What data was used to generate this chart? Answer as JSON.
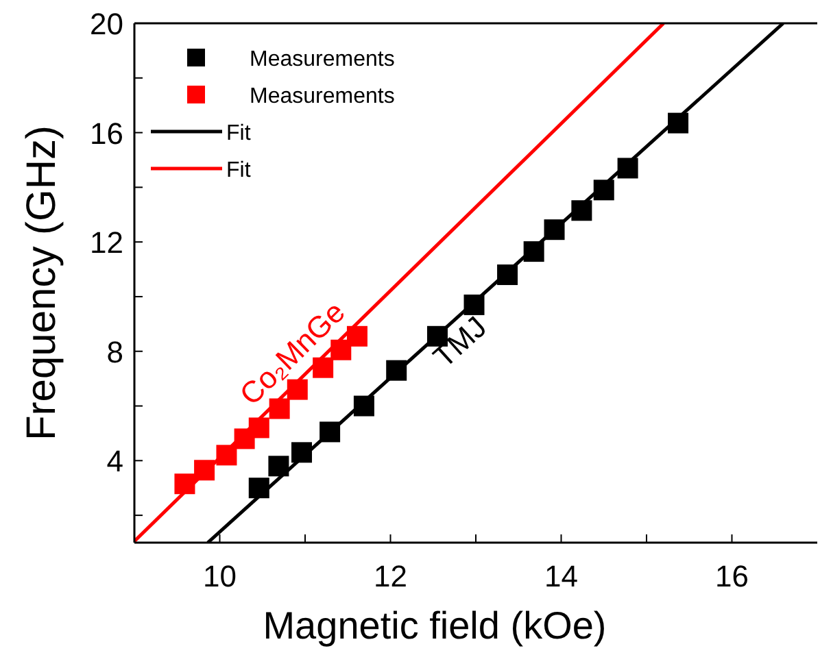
{
  "chart_data": {
    "type": "scatter",
    "xlabel": "Magnetic field (kOe)",
    "ylabel": "Frequency (GHz)",
    "xlim": [
      9,
      17
    ],
    "xticks": [
      10,
      {
        "value": 11,
        "label": null
      },
      12,
      {
        "value": 13,
        "label": null
      },
      14,
      {
        "value": 15,
        "label": null
      },
      16
    ],
    "ylim": [
      1,
      20
    ],
    "yticks": [
      {
        "value": 2,
        "label": null
      },
      4,
      {
        "value": 6,
        "label": null
      },
      8,
      {
        "value": 10,
        "label": null
      },
      12,
      {
        "value": 14,
        "label": null
      },
      16,
      {
        "value": 18,
        "label": null
      },
      20
    ],
    "legend": "top left",
    "grid": false,
    "series": [
      {
        "name": "Measurements",
        "color": "#000000",
        "marker": "square",
        "x": [
          10.46,
          10.69,
          10.96,
          11.29,
          11.69,
          12.07,
          12.55,
          12.98,
          13.37,
          13.68,
          13.92,
          14.24,
          14.5,
          14.78,
          15.37
        ],
        "values": [
          3.0,
          3.8,
          4.3,
          5.05,
          6.0,
          7.3,
          8.55,
          9.7,
          10.8,
          11.65,
          12.45,
          13.15,
          13.9,
          14.7,
          16.35
        ]
      },
      {
        "name": "Measurements",
        "color": "#ff0000",
        "marker": "square",
        "x": [
          9.59,
          9.82,
          10.08,
          10.29,
          10.46,
          10.7,
          10.91,
          11.21,
          11.42,
          11.61
        ],
        "values": [
          3.15,
          3.65,
          4.2,
          4.8,
          5.2,
          5.9,
          6.6,
          7.4,
          8.05,
          8.55
        ]
      },
      {
        "name": "Fit",
        "type": "line",
        "color": "#000000",
        "x": [
          9.86,
          16.6
        ],
        "values": [
          1,
          20
        ]
      },
      {
        "name": "Fit",
        "type": "line",
        "color": "#ff0000",
        "x": [
          9.0,
          15.2
        ],
        "values": [
          1.05,
          20
        ]
      }
    ],
    "annotations": [
      "TMJ",
      "Co₂MnGe"
    ]
  }
}
